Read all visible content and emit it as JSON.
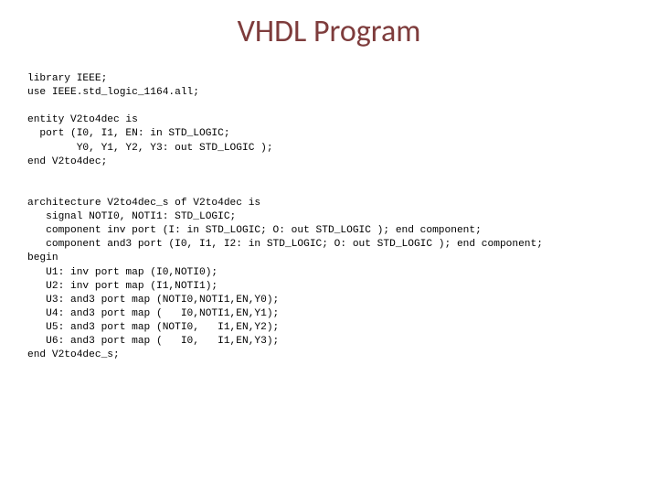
{
  "title": "VHDL Program",
  "title_color": "#7e3c3c",
  "title_fontsize": 34,
  "background_color": "#ffffff",
  "code_fontsize": 11.2,
  "code_color": "#000000",
  "code_font": "Courier New",
  "code": {
    "l01": "library IEEE;",
    "l02": "use IEEE.std_logic_1164.all;",
    "l03": "",
    "l04": "entity V2to4dec is",
    "l05": "  port (I0, I1, EN: in STD_LOGIC;",
    "l06": "        Y0, Y1, Y2, Y3: out STD_LOGIC );",
    "l07": "end V2to4dec;",
    "l08": "",
    "l09": "",
    "l10": "architecture V2to4dec_s of V2to4dec is",
    "l11": "   signal NOTI0, NOTI1: STD_LOGIC;",
    "l12": "   component inv port (I: in STD_LOGIC; O: out STD_LOGIC ); end component;",
    "l13": "   component and3 port (I0, I1, I2: in STD_LOGIC; O: out STD_LOGIC ); end component;",
    "l14": "begin",
    "l15": "   U1: inv port map (I0,NOTI0);",
    "l16": "   U2: inv port map (I1,NOTI1);",
    "l17": "   U3: and3 port map (NOTI0,NOTI1,EN,Y0);",
    "l18": "   U4: and3 port map (   I0,NOTI1,EN,Y1);",
    "l19": "   U5: and3 port map (NOTI0,   I1,EN,Y2);",
    "l20": "   U6: and3 port map (   I0,   I1,EN,Y3);",
    "l21": "end V2to4dec_s;"
  }
}
